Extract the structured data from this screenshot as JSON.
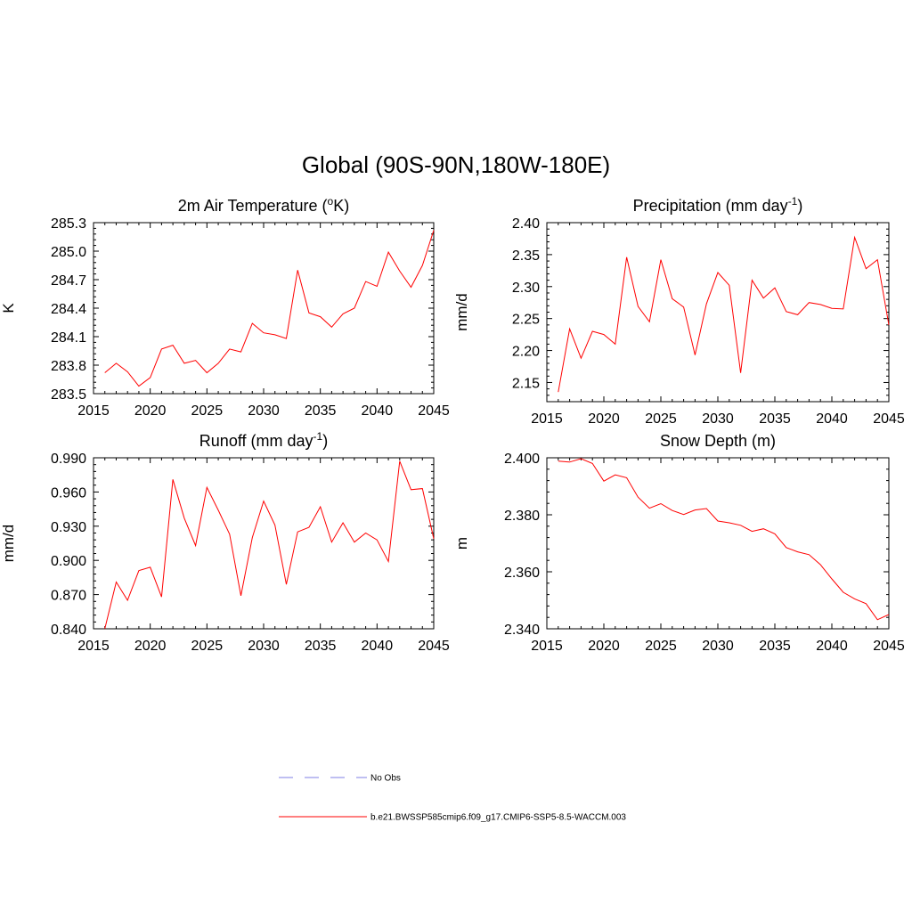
{
  "main_title": "Global (90S-90N,180W-180E)",
  "legend": {
    "entries": [
      {
        "label": "No Obs",
        "color": "#aaaaee",
        "style": "dashed"
      },
      {
        "label": "b.e21.BWSSP585cmip6.f09_g17.CMIP6-SSP5-8.5-WACCM.003",
        "color": "#ff0000",
        "style": "solid"
      }
    ]
  },
  "chart_data": [
    {
      "type": "line",
      "title": "2m Air Temperature (",
      "title_sup": "o",
      "title_end": "K)",
      "ylabel": "K",
      "xlim": [
        2015,
        2045
      ],
      "ylim": [
        283.5,
        285.3
      ],
      "xticks": [
        2015,
        2020,
        2025,
        2030,
        2035,
        2040,
        2045
      ],
      "yticks": [
        283.5,
        283.8,
        284.1,
        284.4,
        284.7,
        285.0,
        285.3
      ],
      "yticklabels": [
        "283.5",
        "283.8",
        "284.1",
        "284.4",
        "284.7",
        "285.0",
        "285.3"
      ],
      "x": [
        2016,
        2017,
        2018,
        2019,
        2020,
        2021,
        2022,
        2023,
        2024,
        2025,
        2026,
        2027,
        2028,
        2029,
        2030,
        2031,
        2032,
        2033,
        2034,
        2035,
        2036,
        2037,
        2038,
        2039,
        2040,
        2041,
        2042,
        2043,
        2044,
        2045
      ],
      "series": [
        {
          "color": "#ff0000",
          "values": [
            283.72,
            283.82,
            283.73,
            283.58,
            283.67,
            283.97,
            284.01,
            283.82,
            283.85,
            283.72,
            283.82,
            283.97,
            283.94,
            284.24,
            284.14,
            284.12,
            284.08,
            284.8,
            284.35,
            284.31,
            284.2,
            284.34,
            284.4,
            284.68,
            284.63,
            284.99,
            284.79,
            284.62,
            284.85,
            285.22
          ]
        }
      ]
    },
    {
      "type": "line",
      "title": "Precipitation (mm day",
      "title_sup": "-1",
      "title_end": ")",
      "ylabel": "mm/d",
      "xlim": [
        2015,
        2045
      ],
      "ylim": [
        2.12,
        2.4
      ],
      "xticks": [
        2015,
        2020,
        2025,
        2030,
        2035,
        2040,
        2045
      ],
      "yticks": [
        2.15,
        2.2,
        2.25,
        2.3,
        2.35,
        2.4
      ],
      "yticklabels": [
        "2.15",
        "2.20",
        "2.25",
        "2.30",
        "2.35",
        "2.40"
      ],
      "x": [
        2016,
        2017,
        2018,
        2019,
        2020,
        2021,
        2022,
        2023,
        2024,
        2025,
        2026,
        2027,
        2028,
        2029,
        2030,
        2031,
        2032,
        2033,
        2034,
        2035,
        2036,
        2037,
        2038,
        2039,
        2040,
        2041,
        2042,
        2043,
        2044,
        2045
      ],
      "series": [
        {
          "color": "#ff0000",
          "values": [
            2.135,
            2.234,
            2.188,
            2.23,
            2.225,
            2.21,
            2.346,
            2.269,
            2.245,
            2.342,
            2.281,
            2.268,
            2.193,
            2.273,
            2.322,
            2.302,
            2.165,
            2.31,
            2.282,
            2.298,
            2.261,
            2.256,
            2.275,
            2.272,
            2.266,
            2.265,
            2.377,
            2.328,
            2.342,
            2.24
          ]
        }
      ]
    },
    {
      "type": "line",
      "title": "Runoff (mm day",
      "title_sup": "-1",
      "title_end": ")",
      "ylabel": "mm/d",
      "xlim": [
        2015,
        2045
      ],
      "ylim": [
        0.84,
        0.99
      ],
      "xticks": [
        2015,
        2020,
        2025,
        2030,
        2035,
        2040,
        2045
      ],
      "yticks": [
        0.84,
        0.87,
        0.9,
        0.93,
        0.96,
        0.99
      ],
      "yticklabels": [
        "0.840",
        "0.870",
        "0.900",
        "0.930",
        "0.960",
        "0.990"
      ],
      "x": [
        2016,
        2017,
        2018,
        2019,
        2020,
        2021,
        2022,
        2023,
        2024,
        2025,
        2026,
        2027,
        2028,
        2029,
        2030,
        2031,
        2032,
        2033,
        2034,
        2035,
        2036,
        2037,
        2038,
        2039,
        2040,
        2041,
        2042,
        2043,
        2044,
        2045
      ],
      "series": [
        {
          "color": "#ff0000",
          "values": [
            0.84,
            0.881,
            0.865,
            0.891,
            0.894,
            0.868,
            0.971,
            0.937,
            0.913,
            0.964,
            0.944,
            0.923,
            0.869,
            0.92,
            0.952,
            0.931,
            0.879,
            0.925,
            0.929,
            0.947,
            0.916,
            0.933,
            0.916,
            0.924,
            0.918,
            0.899,
            0.987,
            0.962,
            0.963,
            0.919
          ]
        }
      ]
    },
    {
      "type": "line",
      "title": "Snow Depth (m)",
      "title_sup": "",
      "title_end": "",
      "ylabel": "m",
      "xlim": [
        2015,
        2045
      ],
      "ylim": [
        2.34,
        2.4
      ],
      "xticks": [
        2015,
        2020,
        2025,
        2030,
        2035,
        2040,
        2045
      ],
      "yticks": [
        2.34,
        2.36,
        2.38,
        2.4
      ],
      "yticklabels": [
        "2.340",
        "2.360",
        "2.380",
        "2.400"
      ],
      "x": [
        2016,
        2017,
        2018,
        2019,
        2020,
        2021,
        2022,
        2023,
        2024,
        2025,
        2026,
        2027,
        2028,
        2029,
        2030,
        2031,
        2032,
        2033,
        2034,
        2035,
        2036,
        2037,
        2038,
        2039,
        2040,
        2041,
        2042,
        2043,
        2044,
        2045
      ],
      "series": [
        {
          "color": "#ff0000",
          "values": [
            2.3988,
            2.3985,
            2.3997,
            2.398,
            2.3918,
            2.394,
            2.393,
            2.3862,
            2.3823,
            2.3839,
            2.3815,
            2.3801,
            2.3817,
            2.3822,
            2.3778,
            2.3772,
            2.3763,
            2.3742,
            2.3751,
            2.3733,
            2.3685,
            2.367,
            2.366,
            2.3625,
            2.3575,
            2.3528,
            2.3505,
            2.3488,
            2.3432,
            2.345
          ]
        }
      ]
    }
  ]
}
